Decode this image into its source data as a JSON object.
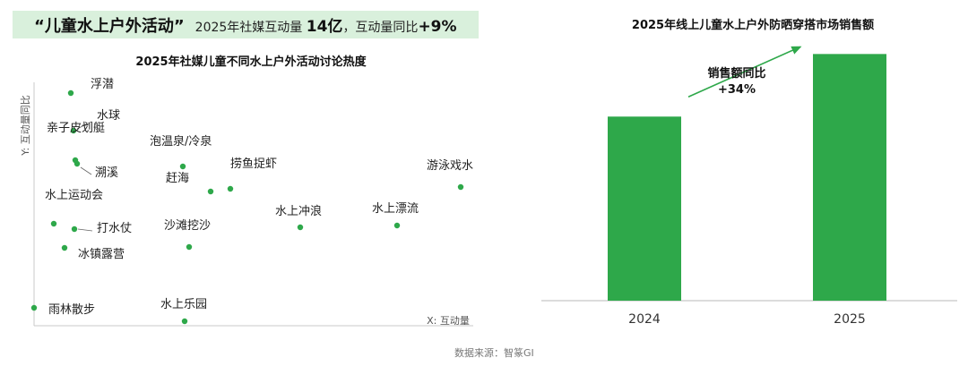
{
  "banner": {
    "title": "“儿童水上户外活动”",
    "text1": "2025年社媒互动量",
    "strong1": "14亿",
    "text2": "，互动量同比",
    "strong2": "+9%"
  },
  "source": "数据来源：智篆GI",
  "colors": {
    "accent": "#2ea84a",
    "banner_bg": "#d9f0dc"
  },
  "chart_data": [
    {
      "type": "scatter",
      "title": "2025年社媒儿童不同水上户外活动讨论热度",
      "xlabel": "X: 互动量",
      "ylabel": "Y: 互动量同比",
      "grid": false,
      "points": [
        {
          "label": "浮潜",
          "x": 79,
          "y": 304
        },
        {
          "label": "水球",
          "x": 82,
          "y": 262
        },
        {
          "label": "亲子皮划艇",
          "x": 84,
          "y": 229
        },
        {
          "label": "溯溪",
          "x": 86,
          "y": 225
        },
        {
          "label": "泡温泉/冷泉",
          "x": 204,
          "y": 222
        },
        {
          "label": "捞鱼捉虾",
          "x": 257,
          "y": 197
        },
        {
          "label": "赶海",
          "x": 235,
          "y": 194
        },
        {
          "label": "游泳戏水",
          "x": 514,
          "y": 199
        },
        {
          "label": "水上运动会",
          "x": 60,
          "y": 158
        },
        {
          "label": "打水仗",
          "x": 83,
          "y": 152
        },
        {
          "label": "水上冲浪",
          "x": 335,
          "y": 154
        },
        {
          "label": "水上漂流",
          "x": 443,
          "y": 156
        },
        {
          "label": "沙滩挖沙",
          "x": 211,
          "y": 132
        },
        {
          "label": "冰镇露营",
          "x": 72,
          "y": 131
        },
        {
          "label": "雨林散步",
          "x": 38,
          "y": 64
        },
        {
          "label": "水上乐园",
          "x": 206,
          "y": 49
        }
      ]
    },
    {
      "type": "bar",
      "title": "2025年线上儿童水上户外防晒穿搭市场销售额",
      "categories": [
        "2024",
        "2025"
      ],
      "values": [
        100,
        134
      ],
      "ylim": [
        0,
        140
      ],
      "annotation": {
        "title": "销售额同比",
        "value": "+34%"
      }
    }
  ]
}
